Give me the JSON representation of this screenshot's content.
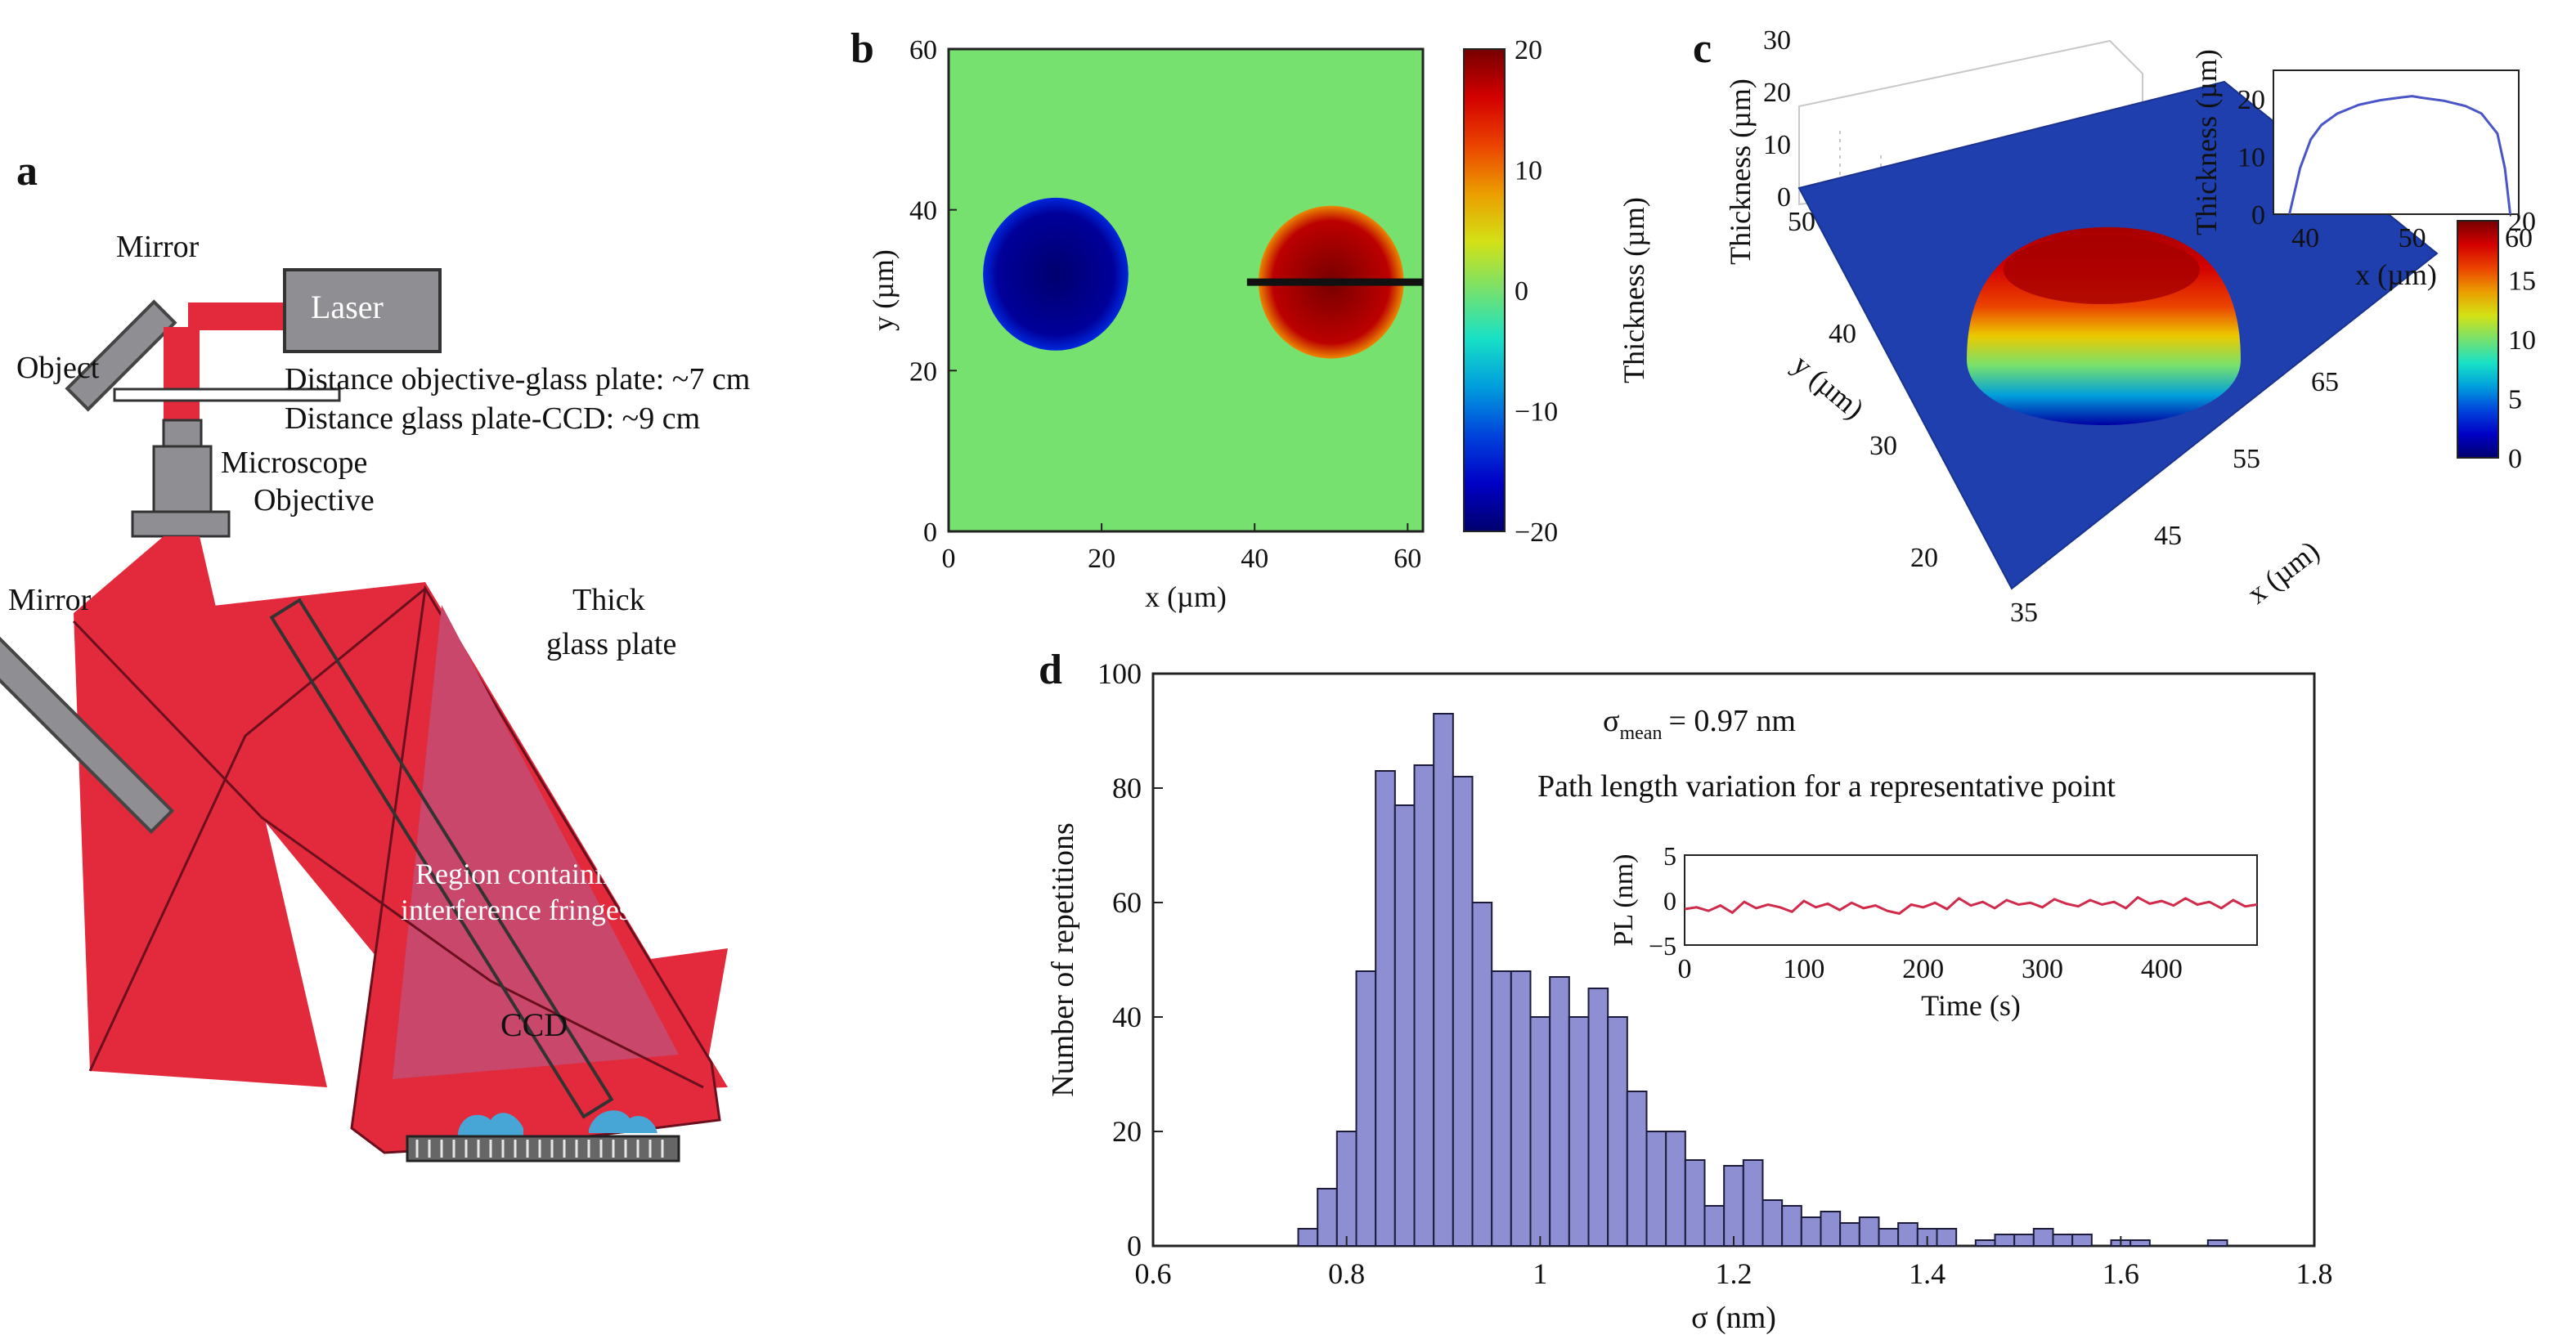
{
  "panel_a": {
    "letter": "a",
    "labels": {
      "mirror_top": "Mirror",
      "laser": "Laser",
      "object": "Object",
      "distance_1": "Distance objective-glass plate: ~7 cm",
      "distance_2": "Distance glass plate-CCD: ~9 cm",
      "microscope": "Microscope",
      "objective": "Objective",
      "mirror_left": "Mirror",
      "thick": "Thick",
      "glass_plate": "glass plate",
      "region_1": "Region containing",
      "region_2": "interference fringes",
      "ccd": "CCD"
    },
    "colors": {
      "beam": "#e22a3c",
      "device": "#8e8e93",
      "cells": "#48a6d6"
    }
  },
  "panel_b": {
    "letter": "b",
    "chart_data": {
      "type": "heatmap",
      "xlabel": "x (µm)",
      "ylabel": "y (µm)",
      "xlim": [
        0,
        62
      ],
      "ylim": [
        0,
        60
      ],
      "xticks": [
        "0",
        "20",
        "40",
        "60"
      ],
      "yticks": [
        "0",
        "20",
        "40",
        "60"
      ],
      "colorbar_label": "Thickness (µm)",
      "colorbar_ticks": [
        "20",
        "10",
        "0",
        "−10",
        "−20"
      ],
      "colorbar_range": [
        -20,
        20
      ],
      "background_value": 0,
      "features": [
        {
          "shape": "disk",
          "center": [
            14,
            32
          ],
          "radius": 9.5,
          "value": -18
        },
        {
          "shape": "disk",
          "center": [
            50,
            31
          ],
          "radius": 9.5,
          "value": 17
        }
      ],
      "profile_line": {
        "y": 31,
        "x": [
          39,
          62
        ]
      }
    }
  },
  "panel_c": {
    "letter": "c",
    "chart_data": {
      "type": "surface",
      "zlabel": "Thickness (µm)",
      "ylabel": "y (µm)",
      "xlabel": "x (µm)",
      "zticks": [
        "0",
        "10",
        "20",
        "30"
      ],
      "yticks": [
        "50",
        "40",
        "30",
        "20"
      ],
      "xticks": [
        "35",
        "45",
        "55",
        "65"
      ],
      "peak_thickness": 20,
      "colorbar_ticks": [
        "20",
        "15",
        "10",
        "5",
        "0"
      ],
      "colorbar_range": [
        0,
        20
      ],
      "inset": {
        "type": "line",
        "xlabel": "x (µm)",
        "ylabel": "Thickness (µm)",
        "xlim": [
          37,
          60
        ],
        "ylim": [
          0,
          25
        ],
        "xticks": [
          "40",
          "50",
          "60"
        ],
        "yticks": [
          "0",
          "10",
          "20"
        ],
        "x": [
          38.5,
          39.5,
          40.5,
          41.5,
          43,
          45,
          47,
          49,
          50,
          51,
          53,
          55,
          56.5,
          58,
          58.7,
          59.2
        ],
        "y": [
          0,
          8,
          13,
          15.5,
          17.5,
          19,
          19.8,
          20.3,
          20.5,
          20.2,
          19.7,
          18.8,
          17.5,
          14,
          8,
          0
        ]
      }
    }
  },
  "panel_d": {
    "letter": "d",
    "sigma_text": "σ",
    "sigma_sub": "mean",
    "sigma_value": "= 0.97 nm",
    "path_label": "Path length variation for a representative point",
    "chart_data": {
      "type": "bar",
      "xlabel": "σ (nm)",
      "ylabel": "Number of repetitions",
      "xlim": [
        0.6,
        1.8
      ],
      "ylim": [
        0,
        100
      ],
      "xticks": [
        "0.6",
        "0.8",
        "1",
        "1.2",
        "1.4",
        "1.6",
        "1.8"
      ],
      "yticks": [
        "0",
        "20",
        "40",
        "60",
        "80",
        "100"
      ],
      "bin_width": 0.02,
      "bin_starts": [
        0.75,
        0.77,
        0.79,
        0.81,
        0.83,
        0.85,
        0.87,
        0.89,
        0.91,
        0.93,
        0.95,
        0.97,
        0.99,
        1.01,
        1.03,
        1.05,
        1.07,
        1.09,
        1.11,
        1.13,
        1.15,
        1.17,
        1.19,
        1.21,
        1.23,
        1.25,
        1.27,
        1.29,
        1.31,
        1.33,
        1.35,
        1.37,
        1.39,
        1.41,
        1.43,
        1.45,
        1.47,
        1.49,
        1.51,
        1.53,
        1.55,
        1.57,
        1.59,
        1.61,
        1.63,
        1.65,
        1.67,
        1.69
      ],
      "values": [
        3,
        10,
        20,
        48,
        83,
        77,
        84,
        93,
        82,
        60,
        48,
        48,
        40,
        47,
        40,
        45,
        40,
        27,
        20,
        20,
        15,
        7,
        14,
        15,
        8,
        7,
        5,
        6,
        4,
        5,
        3,
        4,
        3,
        3,
        0,
        1,
        2,
        2,
        3,
        2,
        2,
        0,
        1,
        1,
        0,
        0,
        0,
        1
      ],
      "inset": {
        "type": "line",
        "xlabel": "Time (s)",
        "ylabel": "PL (nm)",
        "xlim": [
          0,
          480
        ],
        "ylim": [
          -5,
          5
        ],
        "xticks": [
          "0",
          "100",
          "200",
          "300",
          "400"
        ],
        "yticks": [
          "5",
          "0",
          "−5"
        ],
        "x": [
          0,
          10,
          20,
          30,
          40,
          50,
          60,
          70,
          80,
          90,
          100,
          110,
          120,
          130,
          140,
          150,
          160,
          170,
          180,
          190,
          200,
          210,
          220,
          230,
          240,
          250,
          260,
          270,
          280,
          290,
          300,
          310,
          320,
          330,
          340,
          350,
          360,
          370,
          380,
          390,
          400,
          410,
          420,
          430,
          440,
          450,
          460,
          470,
          480
        ],
        "y": [
          -1.0,
          -0.8,
          -1.2,
          -0.6,
          -1.4,
          -0.2,
          -0.9,
          -0.5,
          -0.8,
          -1.3,
          -0.1,
          -0.8,
          -0.4,
          -1.1,
          -0.3,
          -0.9,
          -0.6,
          -1.2,
          -1.5,
          -0.5,
          -0.8,
          -0.3,
          -1.0,
          0.2,
          -0.6,
          -0.2,
          -0.9,
          0.0,
          -0.5,
          -0.3,
          -0.8,
          0.1,
          -0.4,
          -0.7,
          0.0,
          -0.5,
          -0.2,
          -0.9,
          0.3,
          -0.4,
          -0.1,
          -0.6,
          0.2,
          -0.5,
          -0.2,
          -0.9,
          0.0,
          -0.7,
          -0.5
        ],
        "color": "#d12a4a"
      }
    }
  }
}
